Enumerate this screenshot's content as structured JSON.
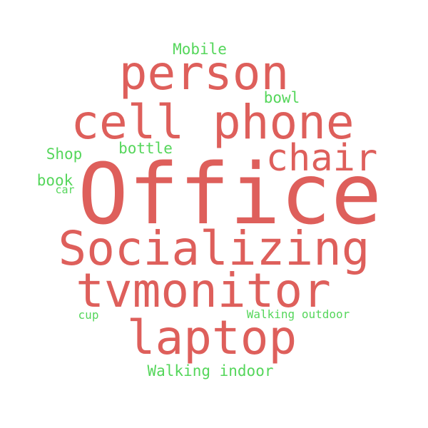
{
  "colors": {
    "primary": "#de5f5b",
    "secondary": "#55d65b",
    "background": "#ffffff"
  },
  "words": [
    {
      "text": "Office",
      "group": "primary"
    },
    {
      "text": "Socializing",
      "group": "primary"
    },
    {
      "text": "tvmonitor",
      "group": "primary"
    },
    {
      "text": "cell phone",
      "group": "primary"
    },
    {
      "text": "person",
      "group": "primary"
    },
    {
      "text": "laptop",
      "group": "primary"
    },
    {
      "text": "chair",
      "group": "primary"
    },
    {
      "text": "Mobile",
      "group": "secondary"
    },
    {
      "text": "bowl",
      "group": "secondary"
    },
    {
      "text": "Shop",
      "group": "secondary"
    },
    {
      "text": "bottle",
      "group": "secondary"
    },
    {
      "text": "book",
      "group": "secondary"
    },
    {
      "text": "car",
      "group": "secondary"
    },
    {
      "text": "cup",
      "group": "secondary"
    },
    {
      "text": "Walking outdoor",
      "group": "secondary"
    },
    {
      "text": "Walking indoor",
      "group": "secondary"
    }
  ]
}
